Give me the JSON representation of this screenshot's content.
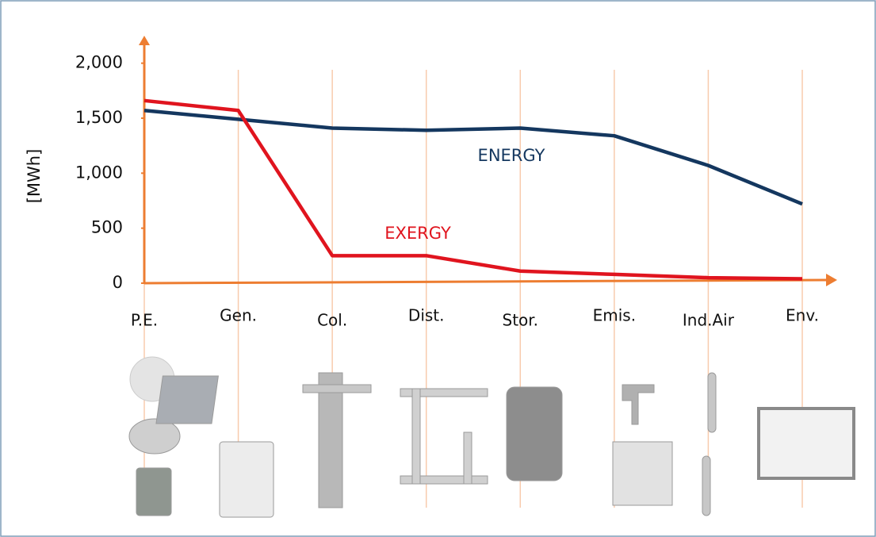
{
  "chart_data": {
    "type": "line",
    "y_label": "[MWh]",
    "categories": [
      "P.E.",
      "Gen.",
      "Col.",
      "Dist.",
      "Stor.",
      "Emis.",
      "Ind.Air",
      "Env."
    ],
    "series": [
      {
        "name": "ENERGY",
        "color": "#14375f",
        "values": [
          1570,
          1490,
          1410,
          1390,
          1410,
          1340,
          1070,
          720
        ]
      },
      {
        "name": "EXERGY",
        "color": "#e0141e",
        "values": [
          1660,
          1570,
          250,
          250,
          110,
          80,
          50,
          40
        ]
      }
    ],
    "ylim": [
      0,
      2250
    ],
    "yticks": [
      0,
      500,
      {
        "value": 1000,
        "label": "1,000"
      },
      {
        "value": 1500,
        "label": "1,500"
      },
      {
        "value": 2000,
        "label": "2,000"
      }
    ],
    "axis_color": "#ed7d31",
    "grid_color": "#f8cbad"
  }
}
